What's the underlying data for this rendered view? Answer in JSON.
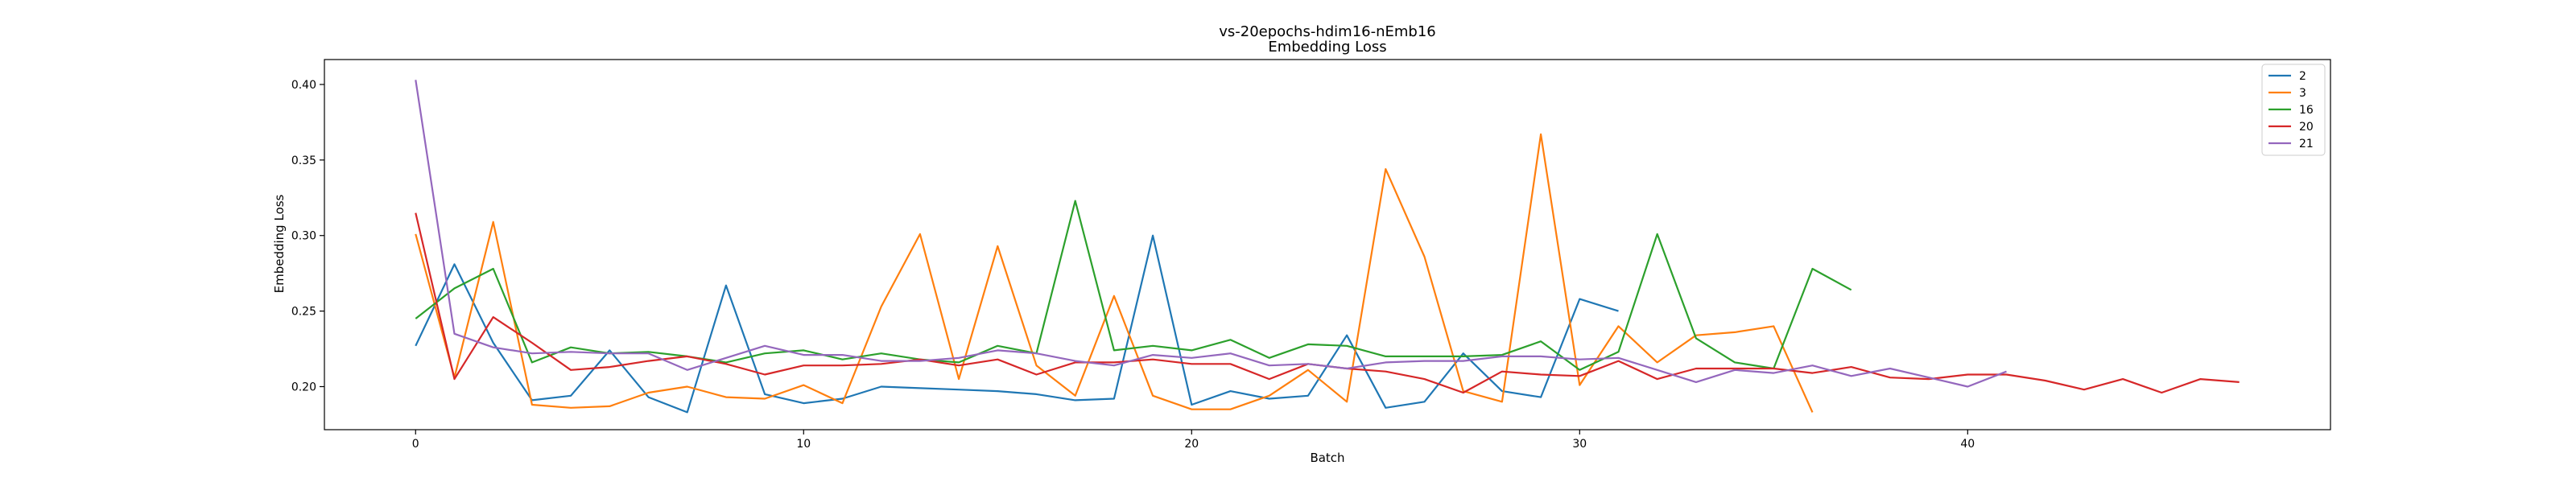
{
  "chart_data": {
    "type": "line",
    "title": "vs-20epochs-hdim16-nEmb16",
    "subtitle": "Embedding Loss",
    "xlabel": "Batch",
    "ylabel": "Embedding Loss",
    "xlim": [
      -2.35,
      49.35
    ],
    "ylim": [
      0.1715,
      0.4165
    ],
    "xticks": [
      0,
      10,
      20,
      30,
      40
    ],
    "yticks": [
      0.2,
      0.25,
      0.3,
      0.35,
      0.4
    ],
    "ytick_labels": [
      "0.20",
      "0.25",
      "0.30",
      "0.35",
      "0.40"
    ],
    "grid": false,
    "legend_position": "top-right",
    "series": [
      {
        "name": "2",
        "color": "#1f77b4",
        "values": [
          0.227,
          0.281,
          0.229,
          0.191,
          0.194,
          0.224,
          0.193,
          0.183,
          0.267,
          0.195,
          0.189,
          0.192,
          0.2,
          0.199,
          0.198,
          0.197,
          0.195,
          0.191,
          0.192,
          0.3,
          0.188,
          0.197,
          0.192,
          0.194,
          0.234,
          0.186,
          0.19,
          0.222,
          0.197,
          0.193,
          0.258,
          0.25
        ]
      },
      {
        "name": "3",
        "color": "#ff7f0e",
        "values": [
          0.301,
          0.206,
          0.309,
          0.188,
          0.186,
          0.187,
          0.196,
          0.2,
          0.193,
          0.192,
          0.201,
          0.189,
          0.253,
          0.301,
          0.205,
          0.293,
          0.214,
          0.194,
          0.26,
          0.194,
          0.185,
          0.185,
          0.194,
          0.211,
          0.19,
          0.344,
          0.286,
          0.197,
          0.19,
          0.367,
          0.201,
          0.24,
          0.216,
          0.234,
          0.236,
          0.24,
          0.183
        ]
      },
      {
        "name": "16",
        "color": "#2ca02c",
        "values": [
          0.245,
          0.265,
          0.278,
          0.216,
          0.226,
          0.222,
          0.223,
          0.22,
          0.216,
          0.222,
          0.224,
          0.218,
          0.222,
          0.218,
          0.216,
          0.227,
          0.222,
          0.323,
          0.224,
          0.227,
          0.224,
          0.231,
          0.219,
          0.228,
          0.227,
          0.22,
          0.22,
          0.22,
          0.221,
          0.23,
          0.211,
          0.223,
          0.301,
          0.232,
          0.216,
          0.212,
          0.278,
          0.264
        ]
      },
      {
        "name": "20",
        "color": "#d62728",
        "values": [
          0.315,
          0.205,
          0.246,
          0.229,
          0.211,
          0.213,
          0.217,
          0.22,
          0.215,
          0.208,
          0.214,
          0.214,
          0.215,
          0.218,
          0.214,
          0.218,
          0.208,
          0.216,
          0.216,
          0.218,
          0.215,
          0.215,
          0.205,
          0.215,
          0.212,
          0.21,
          0.205,
          0.196,
          0.21,
          0.208,
          0.207,
          0.217,
          0.205,
          0.212,
          0.212,
          0.212,
          0.209,
          0.213,
          0.206,
          0.205,
          0.208,
          0.208,
          0.204,
          0.198,
          0.205,
          0.196,
          0.205,
          0.203
        ]
      },
      {
        "name": "21",
        "color": "#9467bd",
        "values": [
          0.403,
          0.235,
          0.226,
          0.222,
          0.223,
          0.222,
          0.222,
          0.211,
          0.219,
          0.227,
          0.221,
          0.221,
          0.217,
          0.217,
          0.219,
          0.224,
          0.222,
          0.217,
          0.214,
          0.221,
          0.219,
          0.222,
          0.214,
          0.215,
          0.212,
          0.216,
          0.217,
          0.217,
          0.22,
          0.22,
          0.218,
          0.219,
          0.211,
          0.203,
          0.211,
          0.209,
          0.214,
          0.207,
          0.212,
          0.206,
          0.2,
          0.21
        ]
      }
    ]
  }
}
